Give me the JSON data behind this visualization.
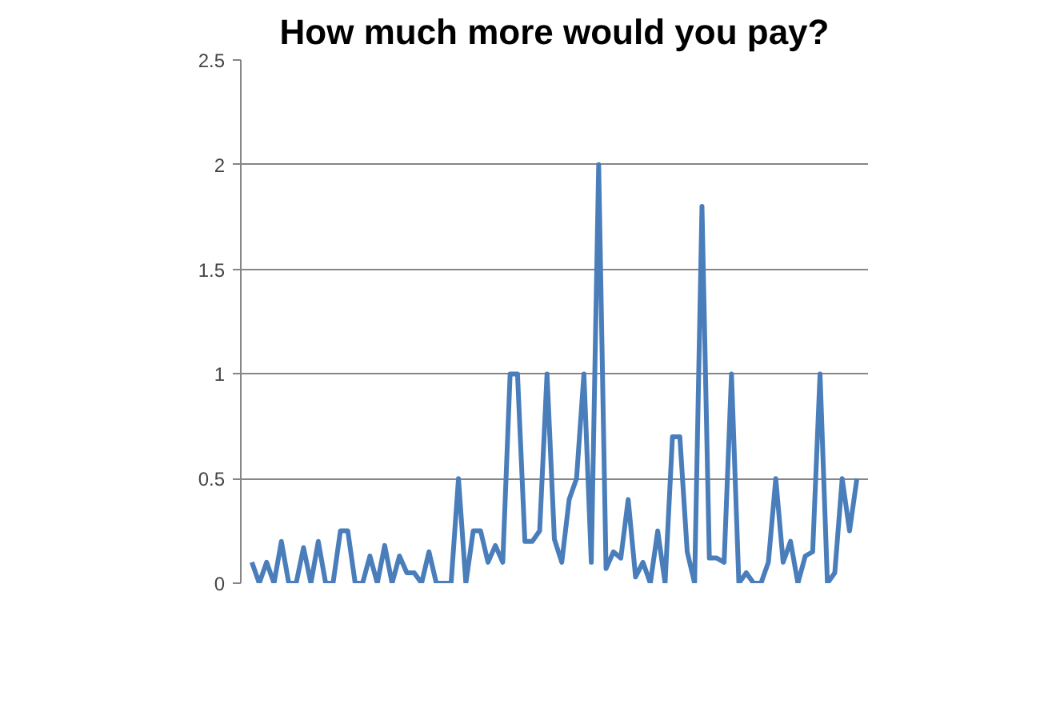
{
  "chart_data": {
    "type": "line",
    "title": "How much more would you pay?",
    "categories": [
      null,
      null,
      null,
      null,
      null,
      null,
      null,
      null,
      null,
      null,
      null,
      null,
      null,
      null,
      null,
      null,
      null,
      null,
      null,
      null,
      null,
      null,
      null,
      null,
      null,
      null,
      null,
      null,
      null,
      null,
      null,
      null,
      null,
      null,
      null,
      null,
      null,
      null,
      null,
      null,
      null,
      null,
      null,
      null,
      null,
      null,
      null,
      null,
      null,
      null,
      null,
      null,
      null,
      null,
      null,
      null,
      null,
      null,
      null,
      null,
      null,
      null,
      null,
      null,
      null,
      null,
      null,
      null,
      null,
      null,
      null,
      null,
      null,
      null,
      null,
      null,
      null,
      null,
      null,
      null,
      null,
      null,
      null
    ],
    "series": [
      {
        "color": "#4a7ebb",
        "values": [
          0.1,
          0,
          0.1,
          0,
          0.2,
          0,
          0,
          0.17,
          0,
          0.2,
          0,
          0,
          0.25,
          0.25,
          0,
          0,
          0.13,
          0,
          0.18,
          0,
          0.13,
          0.05,
          0.05,
          0,
          0.15,
          0,
          0,
          0,
          0.5,
          0,
          0.25,
          0.25,
          0.1,
          0.18,
          0.1,
          1.0,
          1.0,
          0.2,
          0.2,
          0.25,
          1.0,
          0.21,
          0.1,
          0.4,
          0.5,
          1.0,
          0.1,
          2.0,
          0.07,
          0.15,
          0.12,
          0.4,
          0.03,
          0.1,
          0,
          0.25,
          0,
          0.7,
          0.7,
          0.15,
          0,
          1.8,
          0.12,
          0.12,
          0.1,
          1.0,
          0,
          0.05,
          0,
          0,
          0.1,
          0.5,
          0.1,
          0.2,
          0,
          0.13,
          0.15,
          1.0,
          0,
          0.05,
          0.5,
          0.25,
          0.5
        ]
      }
    ],
    "ylim": [
      0,
      2.5
    ],
    "yticks": [
      0,
      0.5,
      1,
      1.5,
      2,
      2.5
    ],
    "grid": "y",
    "line_style": "solid"
  }
}
